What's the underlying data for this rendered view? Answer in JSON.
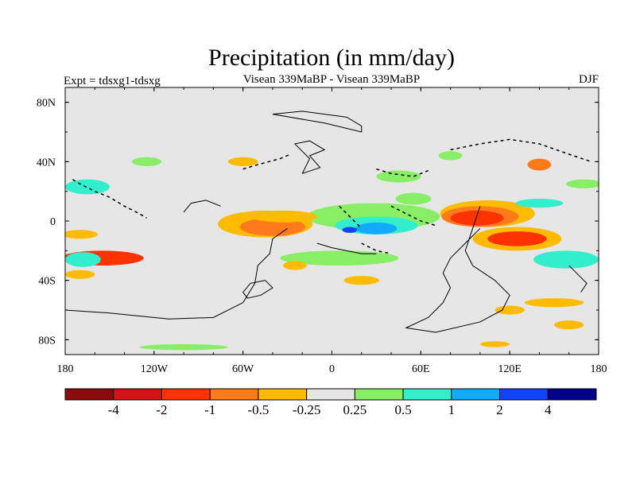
{
  "chart_data": {
    "type": "heatmap",
    "title": "Precipitation (in mm/day)",
    "left_label": "Expt = tdsxg1-tdsxg",
    "center_label": "Visean 339MaBP - Visean 339MaBP",
    "right_label": "DJF",
    "x_range": [
      -180,
      180
    ],
    "y_range": [
      -90,
      90
    ],
    "x_ticks": [
      {
        "value": -180,
        "label": "180"
      },
      {
        "value": -120,
        "label": "120W"
      },
      {
        "value": -60,
        "label": "60W"
      },
      {
        "value": 0,
        "label": "0"
      },
      {
        "value": 60,
        "label": "60E"
      },
      {
        "value": 120,
        "label": "120E"
      },
      {
        "value": 180,
        "label": "180"
      }
    ],
    "y_ticks": [
      {
        "value": 80,
        "label": "80N"
      },
      {
        "value": 40,
        "label": "40N"
      },
      {
        "value": 0,
        "label": "0"
      },
      {
        "value": -40,
        "label": "40S"
      },
      {
        "value": -80,
        "label": "80S"
      }
    ],
    "colorbar": {
      "colors": [
        "#8b0a0a",
        "#d41414",
        "#ff3300",
        "#ff7a1a",
        "#ffbb00",
        "#e6e6e6",
        "#88ee66",
        "#33eecc",
        "#11aaff",
        "#1144ff",
        "#000088"
      ],
      "labels": [
        "-4",
        "-2",
        "-1",
        "-0.5",
        "-0.25",
        "0.25",
        "0.5",
        "1",
        "2",
        "4"
      ]
    },
    "anomalies": [
      {
        "lon": 28,
        "lat": 3,
        "rx": 45,
        "ry": 9,
        "color": "#88ee66"
      },
      {
        "lon": 30,
        "lat": -3,
        "rx": 28,
        "ry": 6,
        "color": "#33eecc"
      },
      {
        "lon": 30,
        "lat": -5,
        "rx": 14,
        "ry": 4,
        "color": "#11aaff"
      },
      {
        "lon": 12,
        "lat": -6,
        "rx": 5,
        "ry": 2,
        "color": "#1144ff"
      },
      {
        "lon": -45,
        "lat": -2,
        "rx": 32,
        "ry": 9,
        "color": "#ffbb00"
      },
      {
        "lon": -40,
        "lat": -4,
        "rx": 22,
        "ry": 6,
        "color": "#ff7a1a"
      },
      {
        "lon": -32,
        "lat": 3,
        "rx": 22,
        "ry": 4,
        "color": "#ffbb00"
      },
      {
        "lon": 105,
        "lat": 5,
        "rx": 32,
        "ry": 9,
        "color": "#ffbb00"
      },
      {
        "lon": 100,
        "lat": 3,
        "rx": 26,
        "ry": 7,
        "color": "#ff7a1a"
      },
      {
        "lon": 98,
        "lat": 2,
        "rx": 18,
        "ry": 5,
        "color": "#ff3300"
      },
      {
        "lon": 125,
        "lat": -12,
        "rx": 30,
        "ry": 8,
        "color": "#ffbb00"
      },
      {
        "lon": 125,
        "lat": -12,
        "rx": 20,
        "ry": 5,
        "color": "#ff3300"
      },
      {
        "lon": 158,
        "lat": -26,
        "rx": 22,
        "ry": 6,
        "color": "#33eecc"
      },
      {
        "lon": 140,
        "lat": 12,
        "rx": 16,
        "ry": 3,
        "color": "#33eecc"
      },
      {
        "lon": -155,
        "lat": -25,
        "rx": 28,
        "ry": 5,
        "color": "#ff3300"
      },
      {
        "lon": -168,
        "lat": -26,
        "rx": 12,
        "ry": 5,
        "color": "#33eecc"
      },
      {
        "lon": -170,
        "lat": -36,
        "rx": 10,
        "ry": 3,
        "color": "#ffbb00"
      },
      {
        "lon": -170,
        "lat": -9,
        "rx": 12,
        "ry": 3,
        "color": "#ffbb00"
      },
      {
        "lon": -165,
        "lat": 23,
        "rx": 15,
        "ry": 5,
        "color": "#33eecc"
      },
      {
        "lon": 170,
        "lat": 25,
        "rx": 12,
        "ry": 3,
        "color": "#88ee66"
      },
      {
        "lon": -125,
        "lat": 40,
        "rx": 10,
        "ry": 3,
        "color": "#88ee66"
      },
      {
        "lon": -60,
        "lat": 40,
        "rx": 10,
        "ry": 3,
        "color": "#ffbb00"
      },
      {
        "lon": 80,
        "lat": 44,
        "rx": 8,
        "ry": 3,
        "color": "#88ee66"
      },
      {
        "lon": 140,
        "lat": 38,
        "rx": 8,
        "ry": 4,
        "color": "#ff7a1a"
      },
      {
        "lon": 45,
        "lat": 30,
        "rx": 15,
        "ry": 4,
        "color": "#88ee66"
      },
      {
        "lon": 55,
        "lat": 15,
        "rx": 12,
        "ry": 4,
        "color": "#88ee66"
      },
      {
        "lon": 5,
        "lat": -25,
        "rx": 40,
        "ry": 5,
        "color": "#88ee66"
      },
      {
        "lon": -25,
        "lat": -30,
        "rx": 8,
        "ry": 3,
        "color": "#ffbb00"
      },
      {
        "lon": 20,
        "lat": -40,
        "rx": 12,
        "ry": 3,
        "color": "#ffbb00"
      },
      {
        "lon": 150,
        "lat": -55,
        "rx": 20,
        "ry": 3,
        "color": "#ffbb00"
      },
      {
        "lon": 120,
        "lat": -60,
        "rx": 10,
        "ry": 3,
        "color": "#ffbb00"
      },
      {
        "lon": 160,
        "lat": -70,
        "rx": 10,
        "ry": 3,
        "color": "#ffbb00"
      },
      {
        "lon": -100,
        "lat": -85,
        "rx": 30,
        "ry": 2,
        "color": "#88ee66"
      },
      {
        "lon": 110,
        "lat": -83,
        "rx": 10,
        "ry": 2,
        "color": "#ffbb00"
      }
    ],
    "coastlines": [
      [
        [
          -30,
          -5
        ],
        [
          -40,
          -12
        ],
        [
          -42,
          -22
        ],
        [
          -50,
          -30
        ],
        [
          -52,
          -42
        ],
        [
          -60,
          -55
        ],
        [
          -80,
          -65
        ],
        [
          -110,
          -66
        ],
        [
          -150,
          -62
        ],
        [
          -180,
          -60
        ]
      ],
      [
        [
          -45,
          -40
        ],
        [
          -55,
          -42
        ],
        [
          -60,
          -48
        ],
        [
          -57,
          -52
        ],
        [
          -48,
          -50
        ],
        [
          -40,
          -45
        ],
        [
          -45,
          -40
        ]
      ],
      [
        [
          100,
          10
        ],
        [
          95,
          -5
        ],
        [
          90,
          -20
        ],
        [
          95,
          -30
        ],
        [
          110,
          -40
        ],
        [
          120,
          -50
        ],
        [
          115,
          -60
        ],
        [
          100,
          -68
        ],
        [
          70,
          -75
        ],
        [
          50,
          -72
        ],
        [
          65,
          -65
        ],
        [
          75,
          -55
        ],
        [
          80,
          -45
        ],
        [
          75,
          -35
        ],
        [
          80,
          -25
        ],
        [
          90,
          -15
        ],
        [
          100,
          -5
        ]
      ],
      [
        [
          -20,
          32
        ],
        [
          -15,
          42
        ],
        [
          -25,
          52
        ],
        [
          -15,
          54
        ],
        [
          -5,
          48
        ],
        [
          -15,
          44
        ],
        [
          -8,
          36
        ],
        [
          -20,
          32
        ]
      ],
      [
        [
          -40,
          72
        ],
        [
          -20,
          74
        ],
        [
          10,
          70
        ],
        [
          20,
          64
        ],
        [
          20,
          60
        ],
        [
          -5,
          66
        ],
        [
          -40,
          72
        ]
      ],
      [
        [
          -10,
          -15
        ],
        [
          0,
          -18
        ],
        [
          10,
          -20
        ],
        [
          20,
          -22
        ],
        [
          30,
          -22
        ]
      ],
      [
        [
          -75,
          10
        ],
        [
          -85,
          14
        ],
        [
          -95,
          12
        ],
        [
          -100,
          6
        ]
      ],
      [
        [
          160,
          -30
        ],
        [
          165,
          -35
        ],
        [
          172,
          -42
        ],
        [
          168,
          -48
        ]
      ]
    ],
    "dashed_lines": [
      [
        [
          -60,
          35
        ],
        [
          -50,
          38
        ],
        [
          -35,
          42
        ],
        [
          -28,
          45
        ]
      ],
      [
        [
          -175,
          28
        ],
        [
          -170,
          25
        ],
        [
          -160,
          20
        ],
        [
          -150,
          16
        ],
        [
          -140,
          10
        ],
        [
          -130,
          5
        ],
        [
          -125,
          2
        ]
      ],
      [
        [
          30,
          35
        ],
        [
          40,
          32
        ],
        [
          55,
          30
        ],
        [
          65,
          34
        ]
      ],
      [
        [
          40,
          10
        ],
        [
          50,
          5
        ],
        [
          60,
          0
        ],
        [
          70,
          -3
        ]
      ],
      [
        [
          20,
          -15
        ],
        [
          30,
          -20
        ],
        [
          40,
          -22
        ]
      ],
      [
        [
          5,
          10
        ],
        [
          10,
          5
        ],
        [
          15,
          0
        ],
        [
          20,
          -5
        ]
      ],
      [
        [
          80,
          48
        ],
        [
          100,
          52
        ],
        [
          120,
          55
        ],
        [
          140,
          52
        ],
        [
          160,
          45
        ],
        [
          175,
          40
        ]
      ]
    ]
  }
}
